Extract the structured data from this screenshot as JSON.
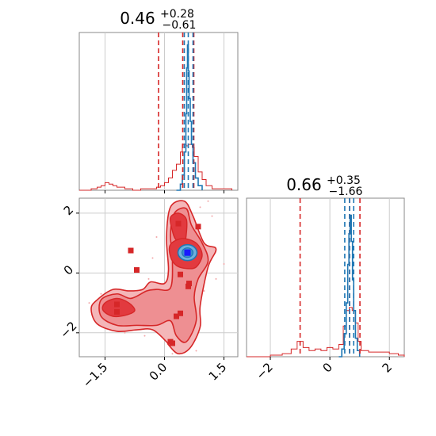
{
  "chart_data": {
    "type": "corner",
    "colors": {
      "red": "#d62728",
      "blue": "#1f77b4",
      "fill_light": "#f4b6b8",
      "fill_mid": "#ee8f92",
      "fill_dark": "#e23a3f",
      "grid": "#cccccc",
      "frame": "#888888"
    },
    "params": [
      {
        "title_value": "0.46",
        "title_plus": "+0.28",
        "title_minus": "−0.61",
        "range": [
          -2.15,
          1.85
        ],
        "ticks": [
          -1.5,
          0.0,
          1.5
        ],
        "tick_labels": [
          "−1.5",
          "0.0",
          "1.5"
        ],
        "red_quantiles": [
          -0.15,
          0.46,
          0.74
        ],
        "blue_quantiles": [
          0.5,
          0.6,
          0.72
        ]
      },
      {
        "title_value": "0.66",
        "title_plus": "+0.35",
        "title_minus": "−1.66",
        "range": [
          -2.8,
          2.5
        ],
        "ticks": [
          -2,
          0,
          2
        ],
        "tick_labels": [
          "−2",
          "0",
          "2"
        ],
        "red_quantiles": [
          -1.0,
          0.66,
          1.01
        ],
        "blue_quantiles": [
          0.5,
          0.66,
          0.8
        ]
      }
    ],
    "red_hist_1": [
      [
        -2.15,
        0
      ],
      [
        -1.9,
        0
      ],
      [
        -1.85,
        0.01
      ],
      [
        -1.7,
        0.02
      ],
      [
        -1.6,
        0.03
      ],
      [
        -1.5,
        0.05
      ],
      [
        -1.4,
        0.04
      ],
      [
        -1.3,
        0.03
      ],
      [
        -1.2,
        0.02
      ],
      [
        -1.0,
        0.01
      ],
      [
        -0.8,
        0.0
      ],
      [
        -0.6,
        0.01
      ],
      [
        -0.4,
        0.01
      ],
      [
        -0.2,
        0.02
      ],
      [
        -0.1,
        0.03
      ],
      [
        0.0,
        0.05
      ],
      [
        0.1,
        0.08
      ],
      [
        0.2,
        0.13
      ],
      [
        0.3,
        0.17
      ],
      [
        0.4,
        0.25
      ],
      [
        0.45,
        0.3
      ],
      [
        0.55,
        0.29
      ],
      [
        0.6,
        0.3
      ],
      [
        0.7,
        0.28
      ],
      [
        0.75,
        0.22
      ],
      [
        0.85,
        0.12
      ],
      [
        0.95,
        0.07
      ],
      [
        1.05,
        0.03
      ],
      [
        1.2,
        0.01
      ],
      [
        1.5,
        0.01
      ],
      [
        1.7,
        0.0
      ]
    ],
    "blue_hist_1": [
      [
        0.3,
        0
      ],
      [
        0.4,
        0.04
      ],
      [
        0.45,
        0.1
      ],
      [
        0.5,
        0.25
      ],
      [
        0.54,
        0.5
      ],
      [
        0.56,
        0.8
      ],
      [
        0.58,
        0.95
      ],
      [
        0.6,
        0.78
      ],
      [
        0.62,
        0.6
      ],
      [
        0.65,
        0.45
      ],
      [
        0.68,
        0.3
      ],
      [
        0.72,
        0.18
      ],
      [
        0.78,
        0.08
      ],
      [
        0.85,
        0.03
      ],
      [
        0.95,
        0.0
      ]
    ],
    "red_hist_2": [
      [
        -2.8,
        0
      ],
      [
        -2.4,
        0.0
      ],
      [
        -2.0,
        0.01
      ],
      [
        -1.6,
        0.02
      ],
      [
        -1.3,
        0.05
      ],
      [
        -1.1,
        0.1
      ],
      [
        -0.9,
        0.06
      ],
      [
        -0.7,
        0.04
      ],
      [
        -0.5,
        0.05
      ],
      [
        -0.3,
        0.04
      ],
      [
        -0.1,
        0.06
      ],
      [
        0.1,
        0.05
      ],
      [
        0.3,
        0.08
      ],
      [
        0.45,
        0.2
      ],
      [
        0.55,
        0.3
      ],
      [
        0.65,
        0.32
      ],
      [
        0.75,
        0.3
      ],
      [
        0.85,
        0.22
      ],
      [
        0.95,
        0.1
      ],
      [
        1.05,
        0.04
      ],
      [
        1.3,
        0.03
      ],
      [
        1.6,
        0.03
      ],
      [
        2.0,
        0.02
      ],
      [
        2.3,
        0.01
      ],
      [
        2.5,
        0.0
      ]
    ],
    "blue_hist_2": [
      [
        0.3,
        0
      ],
      [
        0.4,
        0.05
      ],
      [
        0.48,
        0.15
      ],
      [
        0.55,
        0.35
      ],
      [
        0.6,
        0.6
      ],
      [
        0.64,
        0.8
      ],
      [
        0.68,
        0.92
      ],
      [
        0.72,
        0.75
      ],
      [
        0.76,
        0.5
      ],
      [
        0.8,
        0.3
      ],
      [
        0.86,
        0.12
      ],
      [
        0.92,
        0.04
      ],
      [
        1.0,
        0.0
      ]
    ],
    "contour_light": [
      [
        -1.7,
        -0.9
      ],
      [
        -1.3,
        -0.55
      ],
      [
        -0.9,
        -0.6
      ],
      [
        -0.55,
        -0.55
      ],
      [
        -0.35,
        -0.3
      ],
      [
        0.0,
        -0.35
      ],
      [
        0.1,
        0.1
      ],
      [
        0.05,
        1.2
      ],
      [
        0.15,
        2.2
      ],
      [
        0.5,
        2.4
      ],
      [
        0.72,
        1.9
      ],
      [
        1.0,
        1.0
      ],
      [
        1.3,
        0.8
      ],
      [
        1.1,
        0.2
      ],
      [
        0.9,
        -1.1
      ],
      [
        0.9,
        -1.8
      ],
      [
        0.65,
        -2.5
      ],
      [
        0.35,
        -2.7
      ],
      [
        0.1,
        -2.4
      ],
      [
        0.05,
        -2.3
      ],
      [
        -0.3,
        -1.9
      ],
      [
        -0.7,
        -1.9
      ],
      [
        -1.2,
        -1.95
      ],
      [
        -1.7,
        -1.7
      ],
      [
        -1.85,
        -1.2
      ]
    ],
    "contour_mid": [
      [
        -1.6,
        -0.9
      ],
      [
        -1.2,
        -0.7
      ],
      [
        -0.85,
        -0.85
      ],
      [
        -0.45,
        -0.6
      ],
      [
        -0.2,
        -0.55
      ],
      [
        0.15,
        -0.5
      ],
      [
        0.2,
        0.4
      ],
      [
        0.15,
        1.3
      ],
      [
        0.25,
        2.0
      ],
      [
        0.55,
        2.15
      ],
      [
        0.68,
        1.6
      ],
      [
        0.95,
        1.0
      ],
      [
        1.1,
        0.4
      ],
      [
        0.85,
        -0.2
      ],
      [
        0.75,
        -0.8
      ],
      [
        0.8,
        -1.6
      ],
      [
        0.55,
        -2.3
      ],
      [
        0.3,
        -2.1
      ],
      [
        0.15,
        -1.6
      ],
      [
        -0.2,
        -1.75
      ],
      [
        -0.7,
        -1.75
      ],
      [
        -1.2,
        -1.75
      ],
      [
        -1.6,
        -1.45
      ]
    ],
    "contour_dark": [
      [
        -1.5,
        -1.0
      ],
      [
        -1.2,
        -0.85
      ],
      [
        -0.9,
        -1.0
      ],
      [
        -0.75,
        -1.25
      ],
      [
        -0.95,
        -1.4
      ],
      [
        -1.3,
        -1.45
      ],
      [
        -1.55,
        -1.25
      ]
    ],
    "contour_dark_2": [
      [
        0.15,
        1.85
      ],
      [
        0.35,
        2.0
      ],
      [
        0.55,
        1.8
      ],
      [
        0.55,
        1.3
      ],
      [
        0.5,
        1.1
      ],
      [
        0.3,
        1.1
      ],
      [
        0.2,
        1.4
      ]
    ],
    "contour_dark_3": [
      [
        0.15,
        0.95
      ],
      [
        0.45,
        1.15
      ],
      [
        0.8,
        1.0
      ],
      [
        0.95,
        0.6
      ],
      [
        0.8,
        0.2
      ],
      [
        0.55,
        0.15
      ],
      [
        0.3,
        0.25
      ],
      [
        0.15,
        0.55
      ]
    ],
    "red_points": [
      [
        -1.2,
        -1.05
      ],
      [
        -1.2,
        -1.3
      ],
      [
        0.35,
        1.65
      ],
      [
        0.4,
        -0.05
      ],
      [
        0.62,
        -0.35
      ],
      [
        0.6,
        -0.45
      ],
      [
        0.4,
        -1.35
      ],
      [
        0.3,
        -1.45
      ],
      [
        0.2,
        -2.35
      ],
      [
        0.15,
        -2.3
      ],
      [
        0.85,
        1.55
      ],
      [
        -0.85,
        0.75
      ],
      [
        -0.7,
        0.1
      ],
      [
        0.55,
        0.72
      ],
      [
        0.62,
        0.62
      ]
    ],
    "blue_center": [
      0.58,
      0.68
    ],
    "scatter_noise": [
      [
        -1.8,
        -1.3
      ],
      [
        -1.6,
        -0.7
      ],
      [
        -0.3,
        0.5
      ],
      [
        -0.2,
        1.2
      ],
      [
        0.9,
        2.2
      ],
      [
        1.2,
        1.9
      ],
      [
        1.0,
        -0.6
      ],
      [
        1.3,
        -0.2
      ],
      [
        -0.5,
        -2.1
      ],
      [
        0.8,
        -2.6
      ],
      [
        -1.0,
        -2.0
      ],
      [
        -0.4,
        -0.2
      ],
      [
        1.5,
        0.3
      ],
      [
        1.1,
        2.4
      ],
      [
        -1.9,
        -1.0
      ],
      [
        0.2,
        -2.7
      ]
    ]
  }
}
